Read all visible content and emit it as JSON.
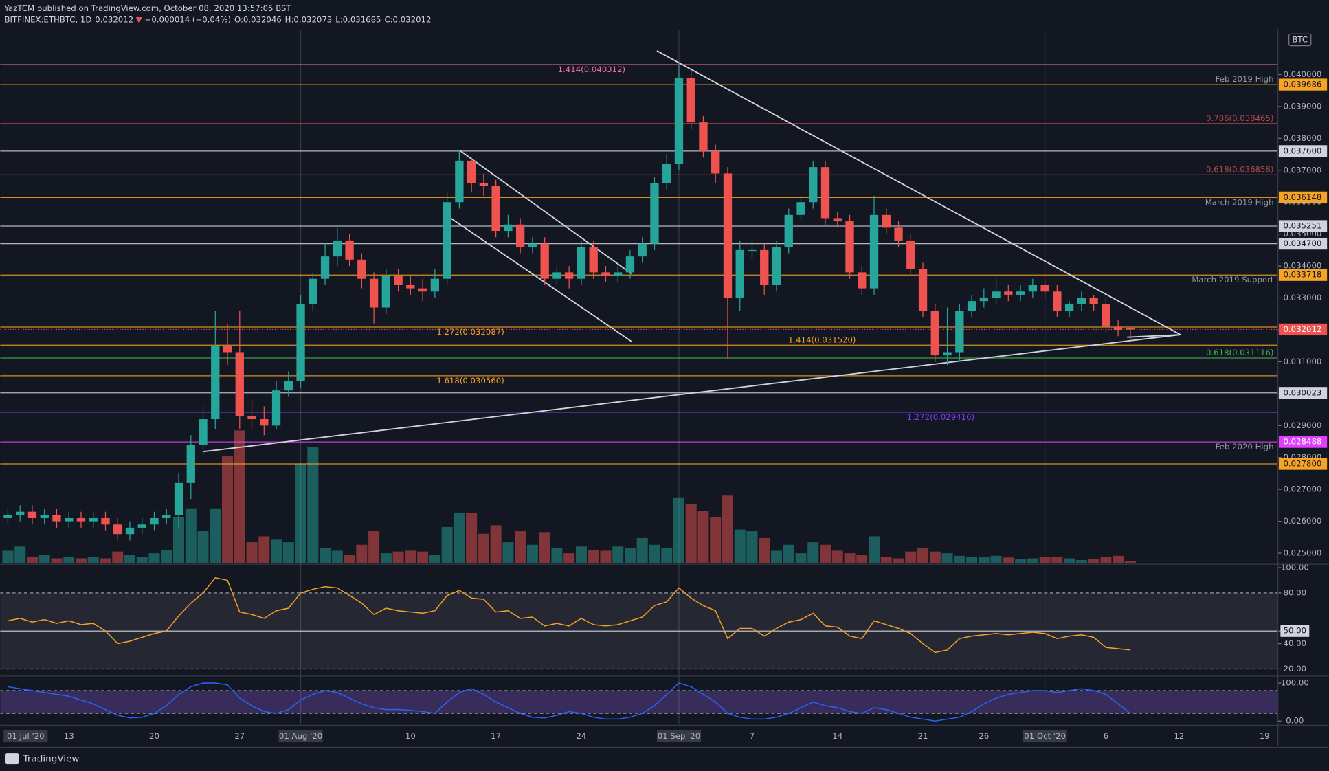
{
  "header": {
    "publisher": "YazTCM published on TradingView.com, October 08, 2020 13:57:05 BST",
    "symbol": "BITFINEX:ETHBTC, 1D",
    "last": "0.032012",
    "arrow": "▼",
    "change": "−0.000014 (−0.04%)",
    "open": "O:0.032046",
    "high": "H:0.032073",
    "low": "L:0.031685",
    "close": "C:0.032012"
  },
  "currency": "BTC",
  "footer": "TradingView",
  "chart_data": {
    "type": "candlestick",
    "x": [
      "2020-07-08",
      "2020-07-09",
      "2020-07-10",
      "2020-07-11",
      "2020-07-12",
      "2020-07-13",
      "2020-07-14",
      "2020-07-15",
      "2020-07-16",
      "2020-07-17",
      "2020-07-18",
      "2020-07-19",
      "2020-07-20",
      "2020-07-21",
      "2020-07-22",
      "2020-07-23",
      "2020-07-24",
      "2020-07-25",
      "2020-07-26",
      "2020-07-27",
      "2020-07-28",
      "2020-07-29",
      "2020-07-30",
      "2020-07-31",
      "2020-08-01",
      "2020-08-02",
      "2020-08-03",
      "2020-08-04",
      "2020-08-05",
      "2020-08-06",
      "2020-08-07",
      "2020-08-08",
      "2020-08-09",
      "2020-08-10",
      "2020-08-11",
      "2020-08-12",
      "2020-08-13",
      "2020-08-14",
      "2020-08-15",
      "2020-08-16",
      "2020-08-17",
      "2020-08-18",
      "2020-08-19",
      "2020-08-20",
      "2020-08-21",
      "2020-08-22",
      "2020-08-23",
      "2020-08-24",
      "2020-08-25",
      "2020-08-26",
      "2020-08-27",
      "2020-08-28",
      "2020-08-29",
      "2020-08-30",
      "2020-08-31",
      "2020-09-01",
      "2020-09-02",
      "2020-09-03",
      "2020-09-04",
      "2020-09-05",
      "2020-09-06",
      "2020-09-07",
      "2020-09-08",
      "2020-09-09",
      "2020-09-10",
      "2020-09-11",
      "2020-09-12",
      "2020-09-13",
      "2020-09-14",
      "2020-09-15",
      "2020-09-16",
      "2020-09-17",
      "2020-09-18",
      "2020-09-19",
      "2020-09-20",
      "2020-09-21",
      "2020-09-22",
      "2020-09-23",
      "2020-09-24",
      "2020-09-25",
      "2020-09-26",
      "2020-09-27",
      "2020-09-28",
      "2020-09-29",
      "2020-09-30",
      "2020-10-01",
      "2020-10-02",
      "2020-10-03",
      "2020-10-04",
      "2020-10-05",
      "2020-10-06",
      "2020-10-07",
      "2020-10-08"
    ],
    "open": [
      0.0261,
      0.0262,
      0.0263,
      0.0261,
      0.0262,
      0.026,
      0.0261,
      0.026,
      0.0261,
      0.0259,
      0.0256,
      0.0258,
      0.0259,
      0.0261,
      0.0262,
      0.0272,
      0.0284,
      0.0292,
      0.0315,
      0.0313,
      0.0293,
      0.0292,
      0.029,
      0.0301,
      0.0304,
      0.0328,
      0.0336,
      0.0343,
      0.0348,
      0.0342,
      0.0336,
      0.0327,
      0.0337,
      0.0334,
      0.0333,
      0.0332,
      0.0336,
      0.036,
      0.0373,
      0.0366,
      0.0365,
      0.0351,
      0.0353,
      0.0346,
      0.0347,
      0.0336,
      0.0338,
      0.0336,
      0.0346,
      0.0338,
      0.0337,
      0.0338,
      0.0343,
      0.0347,
      0.0366,
      0.0372,
      0.0399,
      0.0385,
      0.0376,
      0.0369,
      0.033,
      0.0345,
      0.0345,
      0.0334,
      0.0346,
      0.0356,
      0.036,
      0.0371,
      0.0355,
      0.0354,
      0.0338,
      0.0333,
      0.0356,
      0.0352,
      0.0348,
      0.0339,
      0.0326,
      0.0312,
      0.0313,
      0.0326,
      0.0329,
      0.033,
      0.0332,
      0.0331,
      0.0332,
      0.0334,
      0.0332,
      0.0326,
      0.0328,
      0.033,
      0.0328,
      0.0321,
      0.032046
    ],
    "high": [
      0.0264,
      0.0265,
      0.0265,
      0.0264,
      0.0264,
      0.0263,
      0.0263,
      0.0263,
      0.0263,
      0.0261,
      0.026,
      0.0261,
      0.0263,
      0.0264,
      0.0275,
      0.0287,
      0.0296,
      0.0326,
      0.0322,
      0.0326,
      0.0298,
      0.0296,
      0.0304,
      0.0307,
      0.0331,
      0.0338,
      0.0347,
      0.0352,
      0.035,
      0.0344,
      0.0338,
      0.0339,
      0.0339,
      0.0337,
      0.0336,
      0.0339,
      0.0363,
      0.0376,
      0.0374,
      0.0369,
      0.0367,
      0.0356,
      0.0355,
      0.0349,
      0.0349,
      0.034,
      0.034,
      0.0348,
      0.0348,
      0.034,
      0.034,
      0.0345,
      0.0349,
      0.0368,
      0.0375,
      0.0403,
      0.0401,
      0.0387,
      0.0378,
      0.0371,
      0.0348,
      0.0348,
      0.0347,
      0.0348,
      0.0358,
      0.0362,
      0.0373,
      0.0373,
      0.0357,
      0.0356,
      0.034,
      0.0362,
      0.0358,
      0.0354,
      0.035,
      0.0341,
      0.0328,
      0.0327,
      0.0328,
      0.0331,
      0.0333,
      0.0336,
      0.0334,
      0.0334,
      0.0336,
      0.0336,
      0.0334,
      0.0329,
      0.0332,
      0.0331,
      0.033,
      0.0323,
      0.032073
    ],
    "low": [
      0.0259,
      0.026,
      0.0259,
      0.0259,
      0.0258,
      0.0258,
      0.0258,
      0.0258,
      0.0257,
      0.0254,
      0.0254,
      0.0256,
      0.0257,
      0.0259,
      0.0258,
      0.0267,
      0.0281,
      0.0289,
      0.0309,
      0.0289,
      0.0289,
      0.0287,
      0.0289,
      0.0299,
      0.0302,
      0.0326,
      0.0334,
      0.034,
      0.034,
      0.0333,
      0.0322,
      0.0325,
      0.0332,
      0.0331,
      0.0329,
      0.033,
      0.0334,
      0.0358,
      0.0363,
      0.0362,
      0.0349,
      0.0349,
      0.0344,
      0.0344,
      0.0334,
      0.0334,
      0.0333,
      0.0334,
      0.0336,
      0.0335,
      0.0335,
      0.0336,
      0.0341,
      0.0345,
      0.0364,
      0.037,
      0.0383,
      0.0374,
      0.0366,
      0.0311,
      0.0326,
      0.0342,
      0.0331,
      0.0332,
      0.0344,
      0.0354,
      0.0358,
      0.0353,
      0.0352,
      0.0336,
      0.0331,
      0.0331,
      0.035,
      0.0346,
      0.0337,
      0.0324,
      0.031,
      0.0309,
      0.031,
      0.0324,
      0.0327,
      0.0328,
      0.0329,
      0.0329,
      0.033,
      0.033,
      0.0324,
      0.0324,
      0.0326,
      0.0326,
      0.0319,
      0.0318,
      0.031685
    ],
    "close": [
      0.0262,
      0.0263,
      0.0261,
      0.0262,
      0.026,
      0.0261,
      0.026,
      0.0261,
      0.0259,
      0.0256,
      0.0258,
      0.0259,
      0.0261,
      0.0262,
      0.0272,
      0.0284,
      0.0292,
      0.0315,
      0.0313,
      0.0293,
      0.0292,
      0.029,
      0.0301,
      0.0304,
      0.0328,
      0.0336,
      0.0343,
      0.0348,
      0.0342,
      0.0336,
      0.0327,
      0.0337,
      0.0334,
      0.0333,
      0.0332,
      0.0336,
      0.036,
      0.0373,
      0.0366,
      0.0365,
      0.0351,
      0.0353,
      0.0346,
      0.0347,
      0.0336,
      0.0338,
      0.0336,
      0.0346,
      0.0338,
      0.0337,
      0.0338,
      0.0343,
      0.0347,
      0.0366,
      0.0372,
      0.0399,
      0.0385,
      0.0376,
      0.0369,
      0.033,
      0.0345,
      0.0345,
      0.0334,
      0.0346,
      0.0356,
      0.036,
      0.0371,
      0.0355,
      0.0354,
      0.0338,
      0.0333,
      0.0356,
      0.0352,
      0.0348,
      0.0339,
      0.0326,
      0.0312,
      0.0313,
      0.0326,
      0.0329,
      0.033,
      0.0332,
      0.0331,
      0.0332,
      0.0334,
      0.0332,
      0.0326,
      0.0328,
      0.033,
      0.0328,
      0.0321,
      0.032,
      0.032012
    ],
    "volume": [
      15,
      20,
      8,
      10,
      6,
      8,
      6,
      8,
      6,
      14,
      10,
      8,
      12,
      16,
      55,
      65,
      38,
      65,
      127,
      157,
      25,
      32,
      28,
      25,
      118,
      137,
      18,
      15,
      10,
      22,
      38,
      12,
      14,
      15,
      14,
      10,
      43,
      60,
      60,
      35,
      45,
      25,
      38,
      22,
      37,
      18,
      12,
      20,
      16,
      15,
      20,
      18,
      30,
      22,
      18,
      78,
      70,
      62,
      55,
      80,
      40,
      38,
      30,
      15,
      22,
      12,
      25,
      22,
      15,
      12,
      10,
      32,
      8,
      6,
      14,
      18,
      14,
      12,
      9,
      8,
      8,
      9,
      7,
      5,
      6,
      8,
      8,
      6,
      4,
      5,
      8,
      9,
      3
    ],
    "up_color": "#26a69a",
    "down_color": "#ef5350",
    "ylim": [
      0.02468,
      0.04138
    ],
    "yticks": [
      {
        "value": 0.025,
        "label": "0.025000"
      },
      {
        "value": 0.026,
        "label": "0.026000"
      },
      {
        "value": 0.027,
        "label": "0.027000"
      },
      {
        "value": 0.028,
        "label": "0.028000"
      },
      {
        "value": 0.029,
        "label": "0.029000"
      },
      {
        "value": 0.03,
        "label": "0.030000"
      },
      {
        "value": 0.031,
        "label": "0.031000"
      },
      {
        "value": 0.032,
        "label": "0.032000"
      },
      {
        "value": 0.033,
        "label": "0.033000"
      },
      {
        "value": 0.034,
        "label": "0.034000"
      },
      {
        "value": 0.035,
        "label": "0.035000"
      },
      {
        "value": 0.036,
        "label": "0.036000"
      },
      {
        "value": 0.037,
        "label": "0.037000"
      },
      {
        "value": 0.038,
        "label": "0.038000"
      },
      {
        "value": 0.039,
        "label": "0.039000"
      },
      {
        "value": 0.04,
        "label": "0.040000"
      }
    ],
    "xticks": [
      {
        "value": "2020-07-01",
        "label": "01 Jul '20"
      },
      {
        "value": "2020-07-13",
        "label": "13"
      },
      {
        "value": "2020-07-20",
        "label": "20"
      },
      {
        "value": "2020-07-27",
        "label": "27"
      },
      {
        "value": "2020-08-01",
        "label": "01 Aug '20"
      },
      {
        "value": "2020-08-10",
        "label": "10"
      },
      {
        "value": "2020-08-17",
        "label": "17"
      },
      {
        "value": "2020-08-24",
        "label": "24"
      },
      {
        "value": "2020-09-01",
        "label": "01 Sep '20"
      },
      {
        "value": "2020-09-07",
        "label": "7"
      },
      {
        "value": "2020-09-14",
        "label": "14"
      },
      {
        "value": "2020-09-21",
        "label": "21"
      },
      {
        "value": "2020-09-26",
        "label": "26"
      },
      {
        "value": "2020-10-01",
        "label": "01 Oct '20"
      },
      {
        "value": "2020-10-06",
        "label": "6"
      },
      {
        "value": "2020-10-12",
        "label": "12"
      },
      {
        "value": "2020-10-19",
        "label": "19"
      }
    ],
    "levels": [
      {
        "price": 0.040312,
        "color": "#e57399",
        "text": "1.414(0.040312)"
      },
      {
        "price": 0.039686,
        "color": "#f7a325",
        "box": true,
        "text": "Feb 2019 High"
      },
      {
        "price": 0.038465,
        "color": "#b2474a",
        "text": "0.786(0.038465)"
      },
      {
        "price": {
          "value": 0.0376,
          "label": "0.037600"
        },
        "color": "#d1d4dc",
        "box": true
      },
      {
        "price": 0.036858,
        "color": "#b2474a",
        "text": "0.618(0.036858)"
      },
      {
        "price": 0.036148,
        "color": "#f7a325",
        "box": true,
        "text": "March 2019 High"
      },
      {
        "price": 0.035251,
        "color": "#d1d4dc",
        "box": true
      },
      {
        "price": {
          "value": 0.0347,
          "label": "0.034700"
        },
        "color": "#d1d4dc",
        "box": true
      },
      {
        "price": 0.033718,
        "color": "#f7a325",
        "box": true,
        "text": "March 2019 Support"
      },
      {
        "price": 0.032087,
        "color": "#f7a325",
        "text": "1.272(0.032087)"
      },
      {
        "price": 0.03152,
        "color": "#f7a325",
        "text": "1.414(0.031520)"
      },
      {
        "price": 0.031116,
        "color": "#4caf50",
        "text": "0.618(0.031116)"
      },
      {
        "price": 0.03056,
        "color": "#f7a325",
        "text": "1.618(0.030560)"
      },
      {
        "price": 0.030023,
        "color": "#d1d4dc",
        "box": true
      },
      {
        "price": 0.029416,
        "color": "#7b3ff2",
        "text": "1.272(0.029416)"
      },
      {
        "price": 0.028488,
        "color": "#e040fb",
        "box": true,
        "text": "Feb 2020 High"
      },
      {
        "price": {
          "value": 0.0278,
          "label": "0.027800"
        },
        "color": "#f7a325",
        "box": true
      }
    ],
    "rsi": {
      "color": "#f7a325",
      "ylim": [
        15,
        102
      ],
      "yticks": [
        {
          "value": 100,
          "label": "100.00"
        },
        {
          "value": 80,
          "label": "80.00"
        },
        {
          "value": 50,
          "label": "50.00"
        },
        {
          "value": 40,
          "label": "40.00"
        },
        {
          "value": 20,
          "label": "20.00"
        }
      ],
      "band": [
        20,
        80
      ],
      "midline": 50,
      "values": [
        58,
        60,
        57,
        59,
        56,
        58,
        55,
        56,
        50,
        40,
        42,
        45,
        48,
        50,
        62,
        72,
        80,
        92,
        90,
        65,
        63,
        60,
        66,
        68,
        80,
        83,
        85,
        84,
        78,
        72,
        63,
        68,
        66,
        65,
        64,
        66,
        78,
        82,
        76,
        75,
        65,
        66,
        60,
        61,
        54,
        56,
        54,
        60,
        55,
        54,
        55,
        58,
        61,
        70,
        73,
        84,
        76,
        70,
        66,
        44,
        52,
        52,
        46,
        52,
        57,
        59,
        64,
        54,
        53,
        46,
        44,
        58,
        55,
        52,
        48,
        40,
        33,
        35,
        44,
        46,
        47,
        48,
        47,
        48,
        49,
        48,
        44,
        46,
        47,
        45,
        37,
        36,
        35
      ]
    },
    "stoch": {
      "color": "#2962ff",
      "ylim": [
        -9,
        116
      ],
      "yticks": [
        {
          "value": 100,
          "label": "100.00"
        },
        {
          "value": 0,
          "label": "0.00"
        }
      ],
      "band": [
        20,
        80
      ],
      "values": [
        90,
        85,
        80,
        75,
        70,
        65,
        55,
        45,
        30,
        15,
        8,
        10,
        20,
        40,
        70,
        90,
        100,
        100,
        95,
        60,
        40,
        25,
        20,
        30,
        55,
        70,
        80,
        75,
        60,
        45,
        35,
        30,
        30,
        28,
        25,
        20,
        50,
        75,
        85,
        70,
        50,
        35,
        20,
        10,
        8,
        15,
        25,
        20,
        10,
        5,
        5,
        10,
        20,
        40,
        70,
        100,
        90,
        70,
        50,
        20,
        10,
        5,
        5,
        10,
        20,
        35,
        50,
        40,
        35,
        25,
        20,
        35,
        30,
        20,
        10,
        5,
        0,
        5,
        10,
        25,
        45,
        60,
        70,
        75,
        80,
        80,
        75,
        80,
        85,
        80,
        70,
        45,
        20
      ]
    }
  }
}
